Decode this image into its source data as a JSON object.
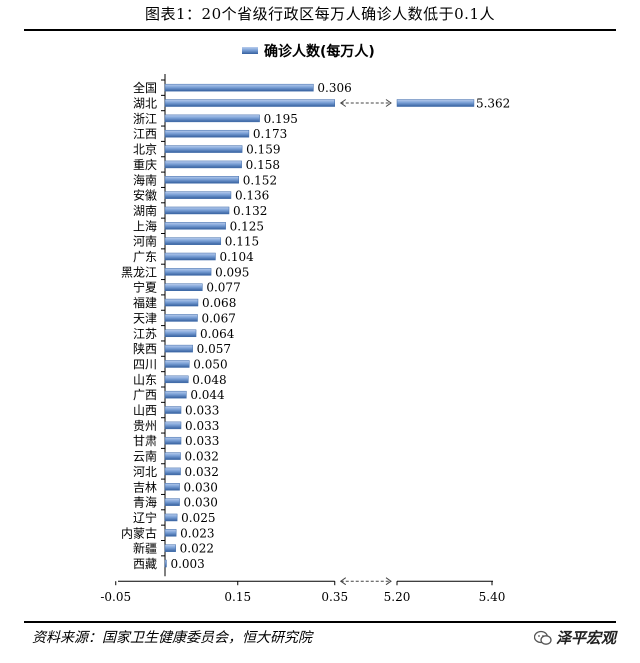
{
  "title": "图表1：20个省级行政区每万人确诊人数低于0.1人",
  "source": "资料来源：国家卫生健康委员会，恒大研究院",
  "watermark": "泽平宏观",
  "colors": {
    "bar_light": "#9ab7e0",
    "bar_dark": "#3e6aa8",
    "axis": "#000000"
  },
  "chart_data": {
    "type": "bar",
    "orientation": "horizontal",
    "axis_break": true,
    "axis_break_between": [
      0.35,
      5.2
    ],
    "series": [
      {
        "name": "确诊人数(每万人)"
      }
    ],
    "legend": {
      "label": "确诊人数(每万人)",
      "position": "top-center"
    },
    "x_ticks": [
      "-0.05",
      "0.15",
      "0.35",
      "5.20",
      "5.40"
    ],
    "x_tick_values": [
      -0.05,
      0.15,
      0.35,
      5.2,
      5.4
    ],
    "xlim": [
      -0.05,
      5.4
    ],
    "categories": [
      "全国",
      "湖北",
      "浙江",
      "江西",
      "北京",
      "重庆",
      "海南",
      "安徽",
      "湖南",
      "上海",
      "河南",
      "广东",
      "黑龙江",
      "宁夏",
      "福建",
      "天津",
      "江苏",
      "陕西",
      "四川",
      "山东",
      "广西",
      "山西",
      "贵州",
      "甘肃",
      "云南",
      "河北",
      "吉林",
      "青海",
      "辽宁",
      "内蒙古",
      "新疆",
      "西藏"
    ],
    "values": [
      0.306,
      5.362,
      0.195,
      0.173,
      0.159,
      0.158,
      0.152,
      0.136,
      0.132,
      0.125,
      0.115,
      0.104,
      0.095,
      0.077,
      0.068,
      0.067,
      0.064,
      0.057,
      0.05,
      0.048,
      0.044,
      0.033,
      0.033,
      0.033,
      0.032,
      0.032,
      0.03,
      0.03,
      0.025,
      0.023,
      0.022,
      0.003
    ],
    "data_labels": [
      "0.306",
      "5.362",
      "0.195",
      "0.173",
      "0.159",
      "0.158",
      "0.152",
      "0.136",
      "0.132",
      "0.125",
      "0.115",
      "0.104",
      "0.095",
      "0.077",
      "0.068",
      "0.067",
      "0.064",
      "0.057",
      "0.050",
      "0.048",
      "0.044",
      "0.033",
      "0.033",
      "0.033",
      "0.032",
      "0.032",
      "0.030",
      "0.030",
      "0.025",
      "0.023",
      "0.022",
      "0.003"
    ]
  }
}
